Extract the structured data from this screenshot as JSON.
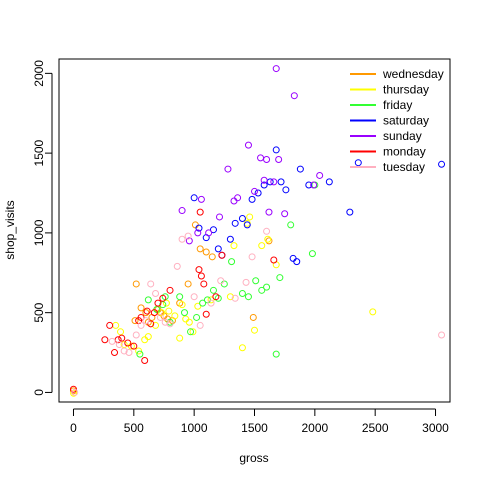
{
  "chart_data": {
    "type": "scatter",
    "title": "",
    "xlabel": "gross",
    "ylabel": "shop_visits",
    "xlim": [
      -120,
      3120
    ],
    "ylim": [
      -60,
      2090
    ],
    "x_ticks": [
      0,
      500,
      1000,
      1500,
      2000,
      2500,
      3000
    ],
    "y_ticks": [
      0,
      500,
      1000,
      1500,
      2000
    ],
    "grid": false,
    "legend_position": "top-right",
    "series": [
      {
        "name": "wednesday",
        "color": "#ff9900",
        "points": [
          [
            0,
            10
          ],
          [
            510,
            450
          ],
          [
            520,
            680
          ],
          [
            560,
            530
          ],
          [
            600,
            500
          ],
          [
            620,
            440
          ],
          [
            650,
            470
          ],
          [
            700,
            520
          ],
          [
            720,
            500
          ],
          [
            750,
            480
          ],
          [
            780,
            460
          ],
          [
            820,
            450
          ],
          [
            880,
            560
          ],
          [
            950,
            680
          ],
          [
            1010,
            1050
          ],
          [
            1050,
            900
          ],
          [
            1100,
            880
          ],
          [
            1150,
            850
          ],
          [
            1490,
            470
          ],
          [
            1620,
            950
          ]
        ]
      },
      {
        "name": "thursday",
        "color": "#ffff00",
        "points": [
          [
            1,
            -5
          ],
          [
            350,
            420
          ],
          [
            390,
            380
          ],
          [
            420,
            300
          ],
          [
            480,
            290
          ],
          [
            540,
            260
          ],
          [
            590,
            330
          ],
          [
            620,
            350
          ],
          [
            680,
            420
          ],
          [
            730,
            500
          ],
          [
            770,
            560
          ],
          [
            790,
            510
          ],
          [
            840,
            480
          ],
          [
            880,
            340
          ],
          [
            900,
            550
          ],
          [
            930,
            460
          ],
          [
            960,
            440
          ],
          [
            990,
            380
          ],
          [
            1030,
            540
          ],
          [
            1140,
            580
          ],
          [
            1300,
            600
          ],
          [
            1330,
            920
          ],
          [
            1400,
            280
          ],
          [
            1440,
            1060
          ],
          [
            1460,
            1100
          ],
          [
            1500,
            390
          ],
          [
            1560,
            920
          ],
          [
            1610,
            960
          ],
          [
            1680,
            800
          ],
          [
            2480,
            505
          ]
        ]
      },
      {
        "name": "friday",
        "color": "#33ff33",
        "points": [
          [
            550,
            240
          ],
          [
            620,
            580
          ],
          [
            690,
            520
          ],
          [
            740,
            550
          ],
          [
            760,
            600
          ],
          [
            800,
            440
          ],
          [
            880,
            600
          ],
          [
            920,
            500
          ],
          [
            970,
            380
          ],
          [
            1020,
            470
          ],
          [
            1070,
            560
          ],
          [
            1110,
            580
          ],
          [
            1160,
            640
          ],
          [
            1200,
            590
          ],
          [
            1250,
            680
          ],
          [
            1310,
            820
          ],
          [
            1400,
            620
          ],
          [
            1450,
            600
          ],
          [
            1510,
            700
          ],
          [
            1560,
            640
          ],
          [
            1600,
            660
          ],
          [
            1680,
            240
          ],
          [
            1710,
            720
          ],
          [
            1800,
            1050
          ],
          [
            1980,
            870
          ],
          [
            2000,
            1300
          ]
        ]
      },
      {
        "name": "saturday",
        "color": "#0000ff",
        "points": [
          [
            1000,
            1220
          ],
          [
            1040,
            1030
          ],
          [
            1100,
            970
          ],
          [
            1160,
            1020
          ],
          [
            1200,
            900
          ],
          [
            1230,
            860
          ],
          [
            1300,
            960
          ],
          [
            1340,
            1060
          ],
          [
            1400,
            1090
          ],
          [
            1440,
            1050
          ],
          [
            1480,
            1210
          ],
          [
            1530,
            1250
          ],
          [
            1580,
            1300
          ],
          [
            1630,
            1320
          ],
          [
            1680,
            1520
          ],
          [
            1720,
            1320
          ],
          [
            1760,
            1270
          ],
          [
            1820,
            840
          ],
          [
            1850,
            820
          ],
          [
            1880,
            1400
          ],
          [
            1950,
            1300
          ],
          [
            2120,
            1320
          ],
          [
            2290,
            1130
          ],
          [
            2360,
            1440
          ],
          [
            3050,
            1430
          ]
        ]
      },
      {
        "name": "sunday",
        "color": "#9900ff",
        "points": [
          [
            900,
            1140
          ],
          [
            960,
            950
          ],
          [
            1030,
            1000
          ],
          [
            1060,
            1210
          ],
          [
            1120,
            1000
          ],
          [
            1210,
            1100
          ],
          [
            1280,
            1400
          ],
          [
            1330,
            1200
          ],
          [
            1360,
            1220
          ],
          [
            1450,
            1550
          ],
          [
            1500,
            1260
          ],
          [
            1550,
            1470
          ],
          [
            1580,
            1330
          ],
          [
            1600,
            1460
          ],
          [
            1620,
            1130
          ],
          [
            1660,
            1320
          ],
          [
            1680,
            2030
          ],
          [
            1700,
            1460
          ],
          [
            1750,
            1120
          ],
          [
            1830,
            1860
          ],
          [
            1990,
            1300
          ],
          [
            2040,
            1360
          ]
        ]
      },
      {
        "name": "monday",
        "color": "#ff0000",
        "points": [
          [
            0,
            20
          ],
          [
            260,
            330
          ],
          [
            300,
            420
          ],
          [
            340,
            250
          ],
          [
            370,
            330
          ],
          [
            400,
            340
          ],
          [
            450,
            310
          ],
          [
            500,
            290
          ],
          [
            540,
            450
          ],
          [
            560,
            470
          ],
          [
            590,
            200
          ],
          [
            610,
            510
          ],
          [
            640,
            430
          ],
          [
            670,
            500
          ],
          [
            700,
            560
          ],
          [
            740,
            590
          ],
          [
            800,
            640
          ],
          [
            1040,
            770
          ],
          [
            1060,
            730
          ],
          [
            1080,
            680
          ],
          [
            1100,
            490
          ],
          [
            1180,
            600
          ],
          [
            1230,
            860
          ],
          [
            1660,
            830
          ],
          [
            1050,
            1130
          ]
        ]
      },
      {
        "name": "tuesday",
        "color": "#ffb0c0",
        "points": [
          [
            10,
            0
          ],
          [
            320,
            320
          ],
          [
            380,
            300
          ],
          [
            420,
            260
          ],
          [
            460,
            250
          ],
          [
            520,
            360
          ],
          [
            560,
            420
          ],
          [
            600,
            450
          ],
          [
            640,
            680
          ],
          [
            680,
            620
          ],
          [
            720,
            470
          ],
          [
            760,
            440
          ],
          [
            800,
            430
          ],
          [
            860,
            790
          ],
          [
            900,
            960
          ],
          [
            950,
            980
          ],
          [
            1000,
            600
          ],
          [
            1050,
            420
          ],
          [
            1140,
            560
          ],
          [
            1220,
            700
          ],
          [
            1340,
            590
          ],
          [
            1430,
            690
          ],
          [
            1480,
            850
          ],
          [
            1600,
            1010
          ],
          [
            3050,
            360
          ]
        ]
      }
    ]
  }
}
